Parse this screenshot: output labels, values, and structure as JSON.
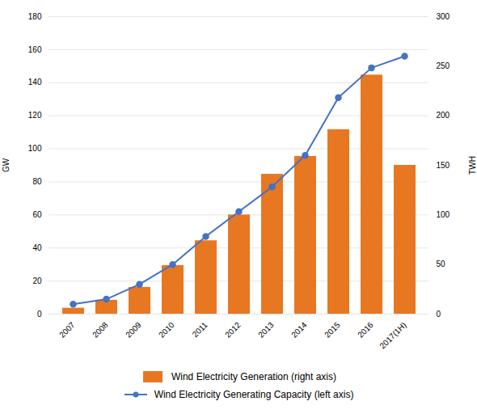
{
  "chart_data": {
    "type": "bar",
    "categories": [
      "2007",
      "2008",
      "2009",
      "2010",
      "2011",
      "2012",
      "2013",
      "2014",
      "2015",
      "2016",
      "2017(1H)"
    ],
    "series": [
      {
        "name": "Wind Electricity Generation (right axis)",
        "type": "bar",
        "axis": "y2",
        "color": "#E87722",
        "values": [
          6,
          14,
          27,
          49,
          74,
          100,
          141,
          159,
          186,
          241,
          150
        ]
      },
      {
        "name": "Wind Electricity Generating Capacity (left axis)",
        "type": "line",
        "color": "#4472C4",
        "marker": "circle",
        "values": [
          6,
          9,
          18,
          30,
          47,
          62,
          77,
          96,
          131,
          149,
          156
        ]
      }
    ],
    "ylabel": "GW",
    "y2label": "TWH",
    "ylim": [
      0,
      180
    ],
    "yticks": [
      0,
      20,
      40,
      60,
      80,
      100,
      120,
      140,
      160,
      180
    ],
    "y2lim": [
      0,
      300
    ],
    "y2ticks": [
      0,
      50,
      100,
      150,
      200,
      250,
      300
    ],
    "grid": true,
    "legend": "bottom"
  }
}
